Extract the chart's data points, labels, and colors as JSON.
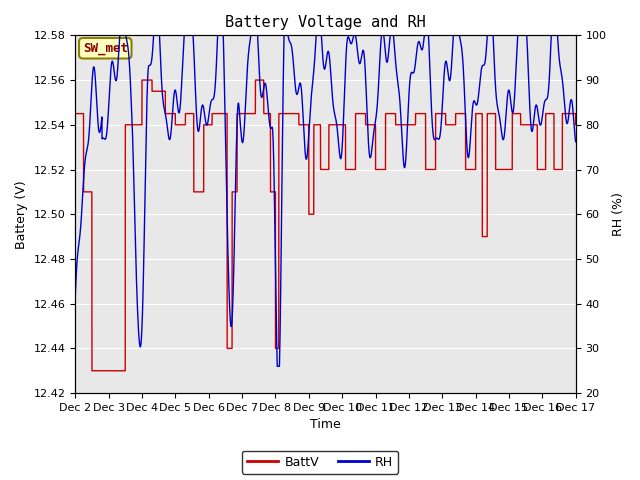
{
  "title": "Battery Voltage and RH",
  "xlabel": "Time",
  "ylabel_left": "Battery (V)",
  "ylabel_right": "RH (%)",
  "annotation": "SW_met",
  "ylim_left": [
    12.42,
    12.58
  ],
  "ylim_right": [
    20,
    100
  ],
  "yticks_left": [
    12.42,
    12.44,
    12.46,
    12.48,
    12.5,
    12.52,
    12.54,
    12.56,
    12.58
  ],
  "yticks_right": [
    20,
    30,
    40,
    50,
    60,
    70,
    80,
    90,
    100
  ],
  "xtick_labels": [
    "Dec 2",
    "Dec 3",
    "Dec 4",
    "Dec 5",
    "Dec 6",
    "Dec 7",
    "Dec 8",
    "Dec 9",
    "Dec 10",
    "Dec 11",
    "Dec 12",
    "Dec 13",
    "Dec 14",
    "Dec 15",
    "Dec 16",
    "Dec 17"
  ],
  "legend_labels": [
    "BattV",
    "RH"
  ],
  "line_colors_battv": "#cc0000",
  "line_colors_rh": "#0000cc",
  "bg_color": "#e8e8e8",
  "title_fontsize": 11,
  "axis_label_fontsize": 9,
  "tick_fontsize": 8,
  "legend_fontsize": 9,
  "annot_fontsize": 9
}
